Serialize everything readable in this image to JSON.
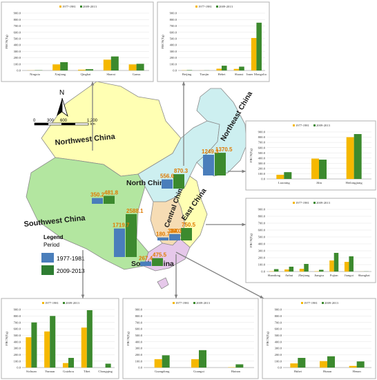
{
  "map": {
    "regions": [
      {
        "name": "Northwest China",
        "color": "#ffffb3"
      },
      {
        "name": "Southwest China",
        "color": "#b3e6a0"
      },
      {
        "name": "North China",
        "color": "#cdeff0"
      },
      {
        "name": "Northeast China",
        "color": "#cdeff0"
      },
      {
        "name": "Central China",
        "color": "#f6dcb4"
      },
      {
        "name": "East China",
        "color": "#ffffb3"
      },
      {
        "name": "South China",
        "color": "#e6c8ea"
      }
    ],
    "legend": {
      "title": "Legend",
      "subtitle": "Period",
      "items": [
        {
          "label": "1977-1981",
          "color": "#4a7ebb"
        },
        {
          "label": "2009-2013",
          "color": "#2e7d32"
        }
      ]
    },
    "scale": {
      "ticks": [
        "0",
        "300",
        "600",
        "1,200"
      ],
      "unit": "km"
    },
    "north": "N",
    "regional_values": [
      {
        "region": "Northwest China",
        "v1": "350.2",
        "v2": "481.8"
      },
      {
        "region": "North China",
        "v1": "556.6",
        "v2": "870.3"
      },
      {
        "region": "Northeast China",
        "v1": "1249.3",
        "v2": "1370.5"
      },
      {
        "region": "Southwest China",
        "v1": "1719.7",
        "v2": "2588.1"
      },
      {
        "region": "Central China",
        "v1": "180.7",
        "v2": "380.3"
      },
      {
        "region": "East China",
        "v1": "384.3",
        "v2": "750.5"
      },
      {
        "region": "South China",
        "v1": "267.4",
        "v2": "475.5"
      }
    ]
  },
  "chart_data": [
    {
      "type": "bar",
      "region": "Northwest China",
      "legend": [
        "1977-1981",
        "2009-2013"
      ],
      "ylabel": "FBCN(Tg)",
      "ylim": [
        0,
        900
      ],
      "yticks": [
        "0.0",
        "100.0",
        "200.0",
        "300.0",
        "400.0",
        "500.0",
        "600.0",
        "700.0",
        "800.0",
        "900.0"
      ],
      "categories": [
        "Ningxia",
        "Xinjiang",
        "Qinghai",
        "Shanxi",
        "Gansu"
      ],
      "series": [
        {
          "name": "1977-1981",
          "values": [
            2,
            95,
            12,
            170,
            95
          ]
        },
        {
          "name": "2009-2013",
          "values": [
            4,
            130,
            20,
            220,
            105
          ]
        }
      ]
    },
    {
      "type": "bar",
      "region": "North China",
      "legend": [
        "1977-1981",
        "2009-2013"
      ],
      "ylabel": "FBCN(Tg)",
      "ylim": [
        0,
        900
      ],
      "yticks": [
        "0.0",
        "100.0",
        "200.0",
        "300.0",
        "400.0",
        "500.0",
        "600.0",
        "700.0",
        "800.0",
        "900.0"
      ],
      "categories": [
        "Beijing",
        "Tianjin",
        "Hebei",
        "Shanxi",
        "Inner Mongolia"
      ],
      "series": [
        {
          "name": "1977-1981",
          "values": [
            3,
            1,
            28,
            25,
            510
          ]
        },
        {
          "name": "2009-2013",
          "values": [
            6,
            2,
            75,
            60,
            750
          ]
        }
      ]
    },
    {
      "type": "bar",
      "region": "Northeast China",
      "legend": [
        "1977-1981",
        "2009-2013"
      ],
      "ylabel": "FBCN(Tg)",
      "ylim": [
        0,
        900
      ],
      "yticks": [
        "0.0",
        "100.0",
        "200.0",
        "300.0",
        "400.0",
        "500.0",
        "600.0",
        "700.0",
        "800.0",
        "900.0"
      ],
      "categories": [
        "Liaoning",
        "Jilin",
        "Heilongjiang"
      ],
      "series": [
        {
          "name": "1977-1981",
          "values": [
            80,
            390,
            800
          ]
        },
        {
          "name": "2009-2013",
          "values": [
            130,
            370,
            860
          ]
        }
      ]
    },
    {
      "type": "bar",
      "region": "East China",
      "legend": [
        "1977-1981",
        "2009-2013"
      ],
      "ylabel": "FBCN(Tg)",
      "ylim": [
        0,
        900
      ],
      "yticks": [
        "0.0",
        "100.0",
        "200.0",
        "300.0",
        "400.0",
        "500.0",
        "600.0",
        "700.0",
        "800.0",
        "900.0"
      ],
      "categories": [
        "Shandong",
        "Anhui",
        "Zhejiang",
        "Jiangsu",
        "Fujian",
        "Jiangxi",
        "Shanghai"
      ],
      "series": [
        {
          "name": "1977-1981",
          "values": [
            5,
            30,
            40,
            5,
            160,
            140,
            1
          ]
        },
        {
          "name": "2009-2013",
          "values": [
            35,
            70,
            110,
            25,
            270,
            220,
            2
          ]
        }
      ]
    },
    {
      "type": "bar",
      "region": "Southwest China",
      "legend": [
        "1977-1981",
        "2009-2013"
      ],
      "ylabel": "FBCN(Tg)",
      "ylim": [
        0,
        900
      ],
      "yticks": [
        "0.0",
        "100.0",
        "200.0",
        "300.0",
        "400.0",
        "500.0",
        "600.0",
        "700.0",
        "800.0",
        "900.0"
      ],
      "categories": [
        "Sichuan",
        "Yunnan",
        "Guizhou",
        "Tibet",
        "Chongqing"
      ],
      "series": [
        {
          "name": "1977-1981",
          "values": [
            470,
            560,
            70,
            620,
            0
          ]
        },
        {
          "name": "2009-2013",
          "values": [
            700,
            800,
            150,
            890,
            60
          ]
        }
      ]
    },
    {
      "type": "bar",
      "region": "South China",
      "legend": [
        "1977-1981",
        "2009-2013"
      ],
      "ylabel": "FBCN(Tg)",
      "ylim": [
        0,
        900
      ],
      "yticks": [
        "0.0",
        "100.0",
        "200.0",
        "300.0",
        "400.0",
        "500.0",
        "600.0",
        "700.0",
        "800.0",
        "900.0"
      ],
      "categories": [
        "Guangdong",
        "Guangxi",
        "Hainan"
      ],
      "series": [
        {
          "name": "1977-1981",
          "values": [
            130,
            130,
            5
          ]
        },
        {
          "name": "2009-2013",
          "values": [
            190,
            270,
            50
          ]
        }
      ]
    },
    {
      "type": "bar",
      "region": "Central China",
      "legend": [
        "1977-1981",
        "2009-2013"
      ],
      "ylabel": "FBCN(Tg)",
      "ylim": [
        0,
        900
      ],
      "yticks": [
        "0.0",
        "100.0",
        "200.0",
        "300.0",
        "400.0",
        "500.0",
        "600.0",
        "700.0",
        "800.0",
        "900.0"
      ],
      "categories": [
        "Hubei",
        "Hunan",
        "Henan"
      ],
      "series": [
        {
          "name": "1977-1981",
          "values": [
            65,
            100,
            25
          ]
        },
        {
          "name": "2009-2013",
          "values": [
            150,
            175,
            95
          ]
        }
      ]
    }
  ]
}
